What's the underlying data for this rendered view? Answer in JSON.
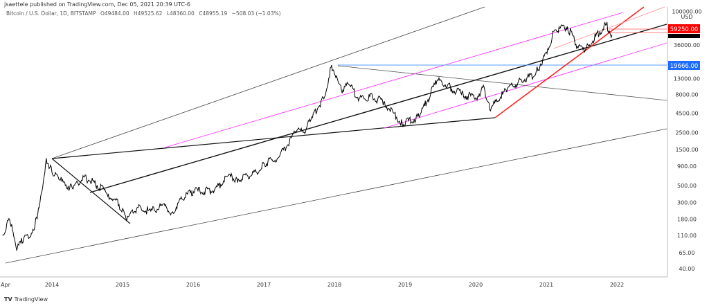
{
  "header": {
    "published": "jsaettele published on TradingView.com, Dec 05, 2021 20:39 UTC-6",
    "symbol": "Bitcoin / U.S. Dollar, 1D, BITSTAMP",
    "open": "O49484.00",
    "high": "H49525.62",
    "low": "L48360.00",
    "close": "C48955.19",
    "change": "−508.03 (−1.03%)"
  },
  "footer": {
    "brand": "TradingView"
  },
  "chart_data": {
    "type": "line",
    "scale": "log",
    "currency": "USD",
    "y_ticks": [
      100000,
      36000,
      13000,
      8000,
      4500,
      2500,
      1500,
      900,
      500,
      300,
      180,
      110,
      65,
      40
    ],
    "y_tick_labels": [
      "100000.00",
      "36000.00",
      "13000.00",
      "8000.00",
      "4500.00",
      "2500.00",
      "1500.00",
      "900.00",
      "500.00",
      "300.00",
      "180.00",
      "110.00",
      "65.00",
      "40.00"
    ],
    "x_tick_labels": [
      "Apr",
      "2014",
      "2015",
      "2016",
      "2017",
      "2018",
      "2019",
      "2020",
      "2021",
      "2022"
    ],
    "price_labels": [
      {
        "value": "59250.00",
        "color": "#ff0000"
      },
      {
        "value": "19666.00",
        "color": "#1e6cff"
      }
    ],
    "series": [
      {
        "x": [
          2013.3,
          2013.4,
          2013.5,
          2013.6,
          2013.75,
          2013.85,
          2013.92,
          2014.0,
          2014.1,
          2014.3,
          2014.45,
          2014.6,
          2014.8,
          2014.95,
          2015.05,
          2015.2,
          2015.4,
          2015.6,
          2015.7,
          2015.85,
          2016.0,
          2016.3,
          2016.5,
          2016.6,
          2016.9,
          2017.0,
          2017.2,
          2017.45,
          2017.6,
          2017.7,
          2017.85,
          2017.96,
          2018.1,
          2018.2,
          2018.35,
          2018.5,
          2018.7,
          2018.88,
          2018.96,
          2019.2,
          2019.45,
          2019.6,
          2019.8,
          2020.0,
          2020.12,
          2020.2,
          2020.45,
          2020.6,
          2020.85,
          2021.0,
          2021.12,
          2021.3,
          2021.45,
          2021.55,
          2021.7,
          2021.85,
          2021.93
        ],
        "y": [
          110,
          180,
          70,
          100,
          130,
          400,
          1150,
          750,
          600,
          450,
          650,
          550,
          380,
          280,
          180,
          250,
          230,
          270,
          220,
          330,
          420,
          430,
          680,
          600,
          750,
          980,
          1150,
          2500,
          2800,
          4500,
          7000,
          19500,
          9000,
          11000,
          7000,
          7500,
          6400,
          4000,
          3300,
          4000,
          12000,
          10500,
          8000,
          7200,
          10000,
          5000,
          9500,
          11500,
          15000,
          29000,
          57000,
          63000,
          33000,
          30000,
          47000,
          67000,
          48955
        ]
      }
    ]
  }
}
